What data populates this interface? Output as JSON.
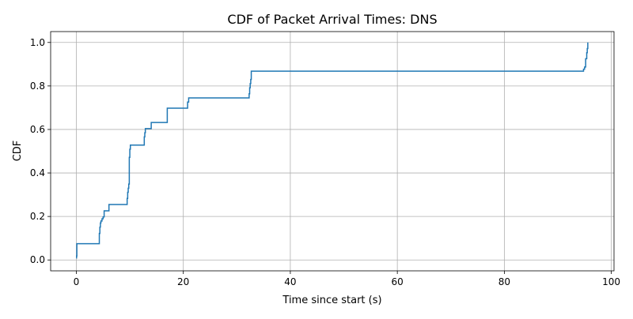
{
  "chart_data": {
    "type": "line",
    "step": true,
    "title": "CDF of Packet Arrival Times: DNS",
    "xlabel": "Time since start (s)",
    "ylabel": "CDF",
    "xlim": [
      -4.8,
      100.5
    ],
    "ylim": [
      -0.05,
      1.05
    ],
    "xticks": [
      0,
      20,
      40,
      60,
      80,
      100
    ],
    "yticks": [
      0.0,
      0.2,
      0.4,
      0.6,
      0.8,
      1.0
    ],
    "xtick_labels": [
      "0",
      "20",
      "40",
      "60",
      "80",
      "100"
    ],
    "ytick_labels": [
      "0.0",
      "0.2",
      "0.4",
      "0.6",
      "0.8",
      "1.0"
    ],
    "grid": true,
    "series": [
      {
        "color": "#1f77b4",
        "x": [
          0.0,
          0.05,
          0.1,
          4.3,
          4.4,
          4.5,
          4.6,
          4.8,
          5.0,
          5.2,
          6.1,
          9.5,
          9.6,
          9.7,
          9.8,
          9.9,
          10.0,
          10.1,
          12.7,
          12.8,
          12.9,
          14.0,
          17.0,
          20.8,
          21.0,
          32.3,
          32.4,
          32.5,
          32.6,
          32.7,
          94.8,
          95.0,
          95.2,
          95.4,
          95.5,
          95.6
        ],
        "y": [
          0.009,
          0.018,
          0.075,
          0.122,
          0.151,
          0.17,
          0.179,
          0.189,
          0.198,
          0.226,
          0.255,
          0.283,
          0.311,
          0.33,
          0.349,
          0.472,
          0.509,
          0.528,
          0.566,
          0.585,
          0.604,
          0.632,
          0.698,
          0.726,
          0.745,
          0.764,
          0.792,
          0.811,
          0.83,
          0.868,
          0.877,
          0.887,
          0.925,
          0.953,
          0.972,
          1.0
        ]
      }
    ]
  }
}
